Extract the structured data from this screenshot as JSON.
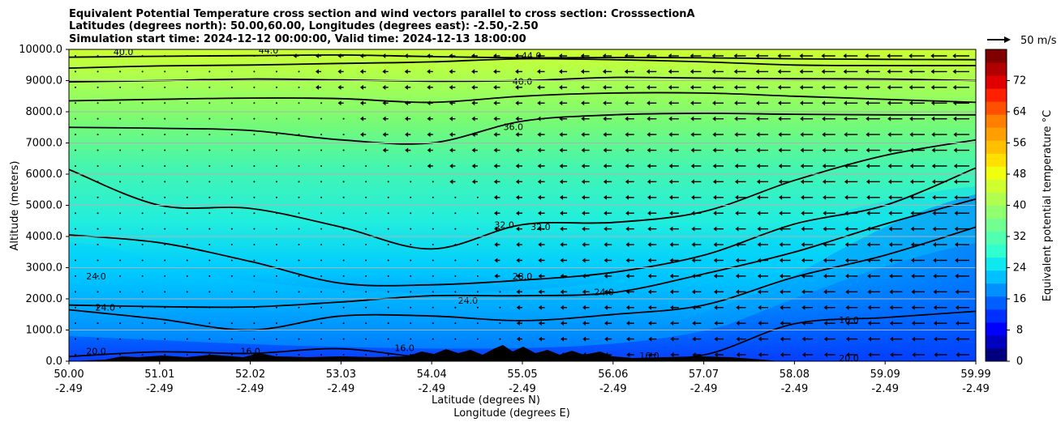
{
  "chart_data": {
    "type": "contour",
    "title_lines": [
      "Equivalent Potential Temperature cross section and wind vectors parallel to cross section: CrosssectionA",
      "Latitudes (degrees north): 50.00,60.00, Longitudes (degrees east): -2.50,-2.50",
      "Simulation start time: 2024-12-12 00:00:00, Valid time: 2024-12-13 18:00:00"
    ],
    "ylabel": "Altitude (meters)",
    "xlabel_lat": "Latitude (degrees N)",
    "xlabel_lon": "Longitude (degrees E)",
    "ylim": [
      0,
      10000
    ],
    "y_ticks": [
      "0.0",
      "1000.0",
      "2000.0",
      "3000.0",
      "4000.0",
      "5000.0",
      "6000.0",
      "7000.0",
      "8000.0",
      "9000.0",
      "10000.0"
    ],
    "x_ticks": [
      {
        "lat": "50.00",
        "lon": "-2.49"
      },
      {
        "lat": "51.01",
        "lon": "-2.49"
      },
      {
        "lat": "52.02",
        "lon": "-2.49"
      },
      {
        "lat": "53.03",
        "lon": "-2.49"
      },
      {
        "lat": "54.04",
        "lon": "-2.49"
      },
      {
        "lat": "55.05",
        "lon": "-2.49"
      },
      {
        "lat": "56.06",
        "lon": "-2.49"
      },
      {
        "lat": "57.07",
        "lon": "-2.49"
      },
      {
        "lat": "58.08",
        "lon": "-2.49"
      },
      {
        "lat": "59.09",
        "lon": "-2.49"
      },
      {
        "lat": "59.99",
        "lon": "-2.49"
      }
    ],
    "colorbar": {
      "label": "Equivalent potential temperature °C",
      "range": [
        0,
        80
      ],
      "tick_labels": [
        "0",
        "8",
        "16",
        "24",
        "32",
        "40",
        "48",
        "56",
        "64",
        "72"
      ]
    },
    "quiver_key": {
      "label": "50 m/s"
    },
    "contour_series": [
      {
        "level": "40.0",
        "alt_m": [
          9750,
          9780,
          9800,
          9820,
          9770,
          9730,
          9740,
          9730,
          9700,
          9680,
          9670
        ]
      },
      {
        "level": "44.0",
        "alt_m": [
          9400,
          9470,
          9500,
          9550,
          9600,
          9700,
          9670,
          9600,
          9500,
          9480,
          9480
        ]
      },
      {
        "level": "40.0",
        "alt_m": [
          8960,
          9000,
          9050,
          9020,
          8980,
          9000,
          9100,
          9080,
          9060,
          9050,
          9000
        ]
      },
      {
        "level": "36.0",
        "alt_m": [
          8350,
          8400,
          8440,
          8420,
          8300,
          8500,
          8600,
          8600,
          8500,
          8400,
          8300
        ]
      },
      {
        "level": "36.0",
        "alt_m": [
          7500,
          7470,
          7400,
          7100,
          7000,
          7700,
          7900,
          7950,
          7920,
          7900,
          7900
        ]
      },
      {
        "level": "32.0",
        "alt_m": [
          6150,
          5000,
          4900,
          4300,
          3600,
          4380,
          4450,
          4800,
          5800,
          6600,
          7100
        ]
      },
      {
        "level": "28.0",
        "alt_m": [
          4050,
          3800,
          3200,
          2500,
          2450,
          2600,
          2850,
          3400,
          4400,
          5000,
          6200
        ]
      },
      {
        "level": "24.0",
        "alt_m": [
          1800,
          1750,
          1740,
          1900,
          2100,
          2100,
          2200,
          2800,
          3500,
          4400,
          5200
        ]
      },
      {
        "level": "20.0",
        "alt_m": [
          1650,
          1350,
          1000,
          1450,
          1450,
          1300,
          1500,
          1800,
          2700,
          3400,
          4300
        ]
      },
      {
        "level": "16.0",
        "alt_m": [
          150,
          300,
          250,
          400,
          100,
          100,
          50,
          200,
          1200,
          1400,
          1600
        ]
      }
    ],
    "contour_labels": [
      "40.0",
      "44.0",
      "44.0",
      "40.0",
      "36.0",
      "32.0",
      "32.0",
      "28.0",
      "24.0",
      "24.0",
      "24.0",
      "24.0",
      "20.0",
      "16.0",
      "16.0",
      "16.0",
      "16.0",
      "20.0"
    ],
    "terrain_note": "black terrain silhouette along lower boundary"
  }
}
